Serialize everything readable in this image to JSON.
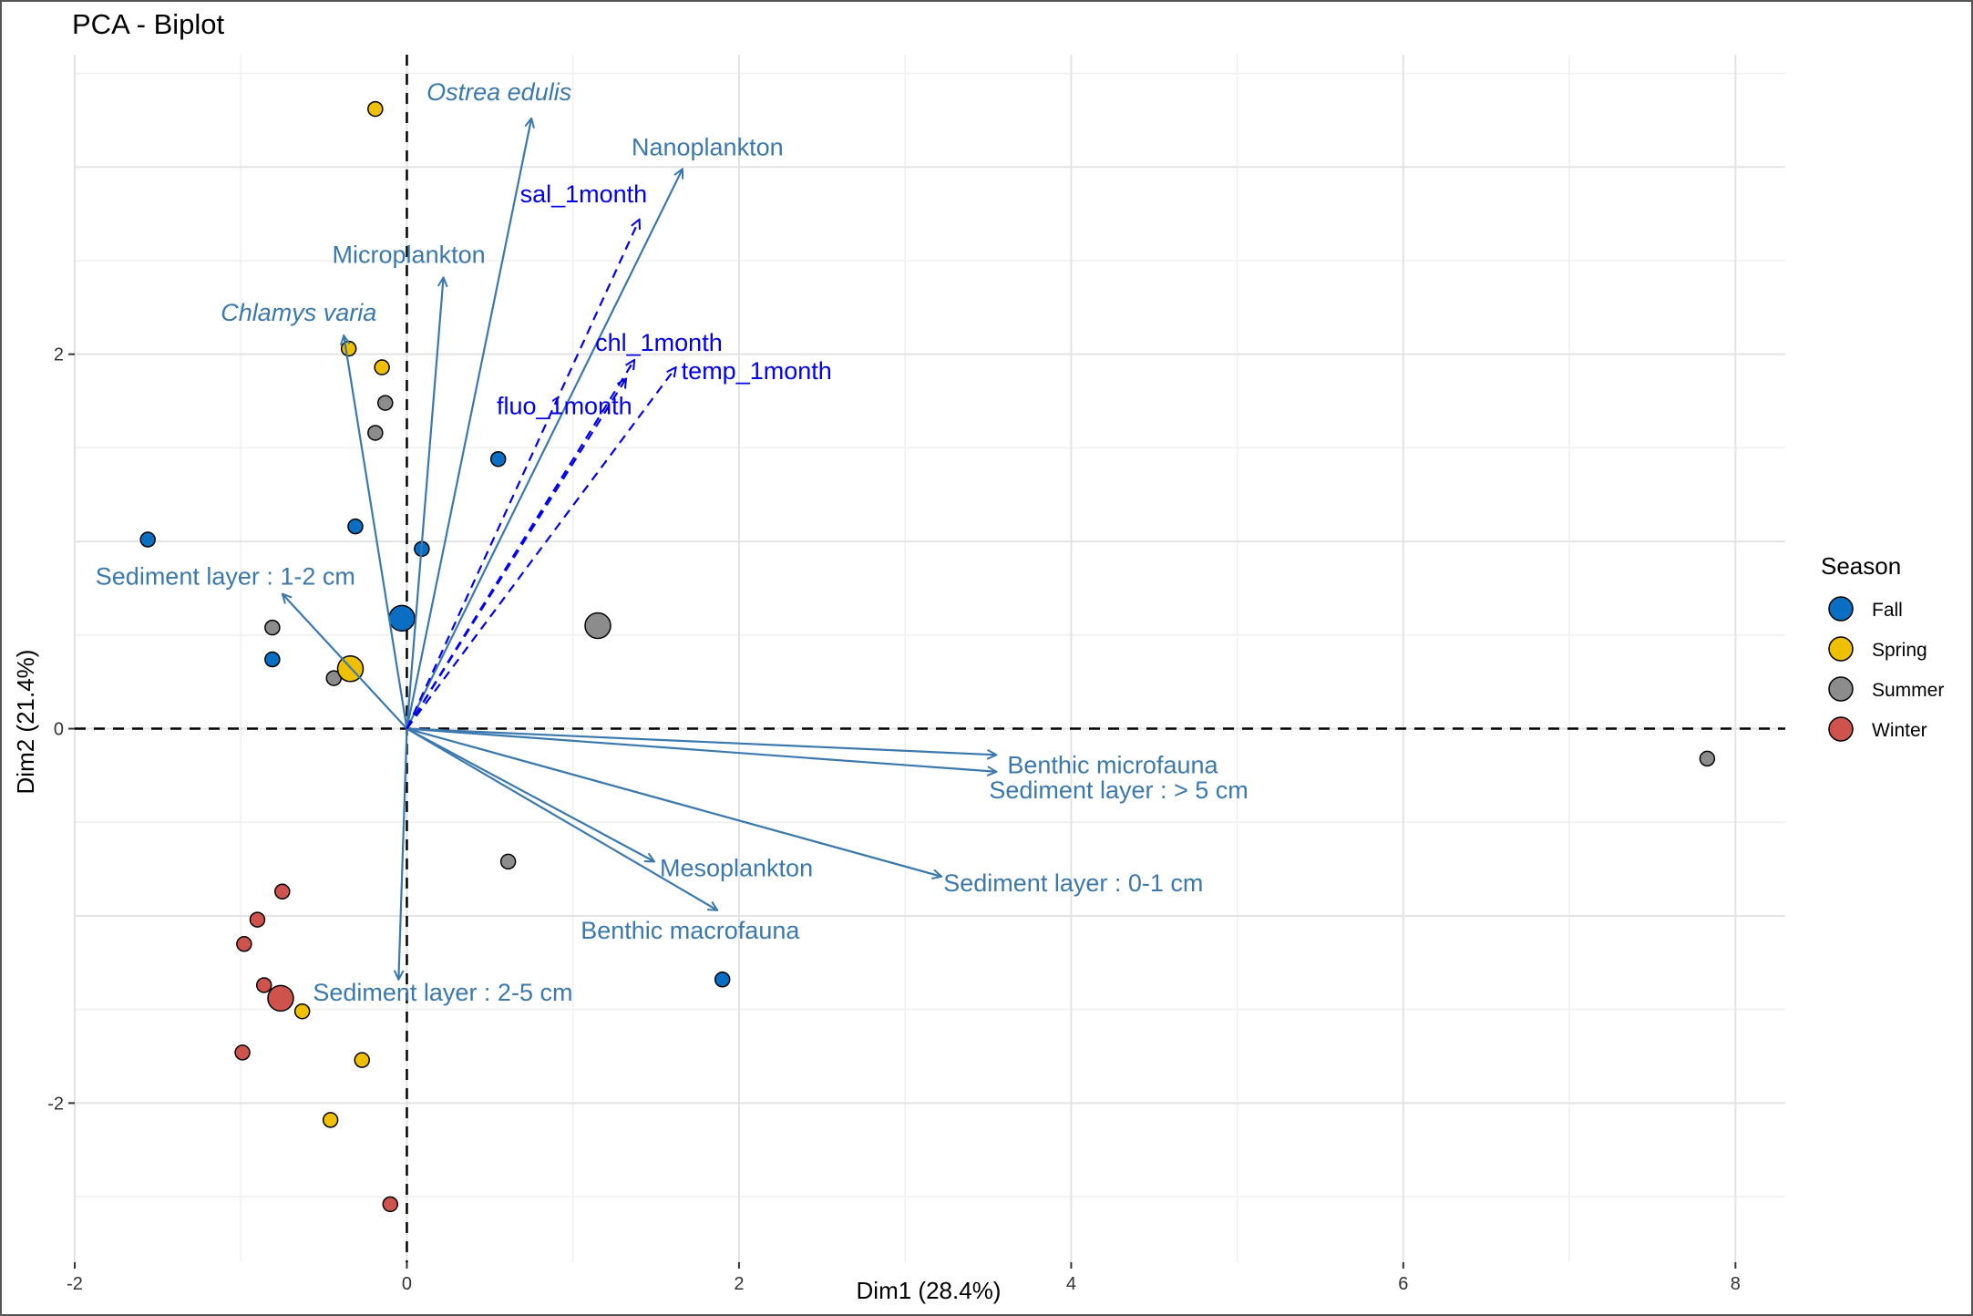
{
  "chart_data": {
    "type": "scatter",
    "title": "PCA - Biplot",
    "xlabel": "Dim1 (28.4%)",
    "ylabel": "Dim2 (21.4%)",
    "xlim": [
      -2.0,
      8.3
    ],
    "ylim": [
      -2.85,
      3.6
    ],
    "xticks": [
      -2,
      0,
      2,
      4,
      6,
      8
    ],
    "xtick_labels": [
      "-2",
      "0",
      "2",
      "4",
      "6",
      "8"
    ],
    "yticks": [
      -2,
      0,
      2
    ],
    "ytick_labels": [
      "-2",
      "0",
      "2"
    ],
    "grid": true,
    "legend": {
      "title": "Season",
      "position": "right",
      "entries": [
        {
          "name": "Fall",
          "color": "#0A6FC2"
        },
        {
          "name": "Spring",
          "color": "#EFC000"
        },
        {
          "name": "Summer",
          "color": "#8C8C8C"
        },
        {
          "name": "Winter",
          "color": "#CD534C"
        }
      ]
    },
    "points": [
      {
        "season": "Spring",
        "x": -0.19,
        "y": 3.31
      },
      {
        "season": "Spring",
        "x": -0.35,
        "y": 2.03
      },
      {
        "season": "Spring",
        "x": -0.15,
        "y": 1.93
      },
      {
        "season": "Summer",
        "x": -0.13,
        "y": 1.74
      },
      {
        "season": "Summer",
        "x": -0.19,
        "y": 1.58
      },
      {
        "season": "Fall",
        "x": 0.55,
        "y": 1.44
      },
      {
        "season": "Fall",
        "x": -1.56,
        "y": 1.01
      },
      {
        "season": "Fall",
        "x": -0.31,
        "y": 1.08
      },
      {
        "season": "Fall",
        "x": 0.09,
        "y": 0.96
      },
      {
        "season": "Summer",
        "x": -0.81,
        "y": 0.54
      },
      {
        "season": "Fall",
        "x": -0.81,
        "y": 0.37
      },
      {
        "season": "Summer",
        "x": -0.44,
        "y": 0.27
      },
      {
        "season": "Summer",
        "x": 0.61,
        "y": -0.71
      },
      {
        "season": "Summer",
        "x": 7.83,
        "y": -0.16
      },
      {
        "season": "Fall",
        "x": 1.9,
        "y": -1.34
      },
      {
        "season": "Winter",
        "x": -0.75,
        "y": -0.87
      },
      {
        "season": "Winter",
        "x": -0.9,
        "y": -1.02
      },
      {
        "season": "Winter",
        "x": -0.98,
        "y": -1.15
      },
      {
        "season": "Winter",
        "x": -0.86,
        "y": -1.37
      },
      {
        "season": "Spring",
        "x": -0.63,
        "y": -1.51
      },
      {
        "season": "Winter",
        "x": -0.99,
        "y": -1.73
      },
      {
        "season": "Spring",
        "x": -0.27,
        "y": -1.77
      },
      {
        "season": "Spring",
        "x": -0.46,
        "y": -2.09
      },
      {
        "season": "Winter",
        "x": -0.1,
        "y": -2.54
      }
    ],
    "centroids": [
      {
        "season": "Fall",
        "x": -0.03,
        "y": 0.59
      },
      {
        "season": "Spring",
        "x": -0.34,
        "y": 0.32
      },
      {
        "season": "Summer",
        "x": 1.15,
        "y": 0.55
      },
      {
        "season": "Winter",
        "x": -0.76,
        "y": -1.44
      }
    ],
    "variables": [
      {
        "name": "Ostrea edulis",
        "x": 0.75,
        "y": 3.26,
        "italic": true,
        "color": "#3A78AE"
      },
      {
        "name": "Nanoplankton",
        "x": 1.66,
        "y": 2.99,
        "italic": false,
        "color": "#3A78AE"
      },
      {
        "name": "Microplankton",
        "x": 0.22,
        "y": 2.41,
        "italic": false,
        "color": "#3A78AE"
      },
      {
        "name": "Chlamys varia",
        "x": -0.38,
        "y": 2.1,
        "italic": true,
        "color": "#3A78AE"
      },
      {
        "name": "Sediment layer : 1-2 cm",
        "x": -0.75,
        "y": 0.72,
        "italic": false,
        "color": "#3A78AE"
      },
      {
        "name": "Benthic microfauna",
        "x": 3.55,
        "y": -0.14,
        "italic": false,
        "color": "#3A78AE"
      },
      {
        "name": "Sediment layer : > 5 cm",
        "x": 3.55,
        "y": -0.23,
        "italic": false,
        "color": "#3A78AE"
      },
      {
        "name": "Mesoplankton",
        "x": 1.49,
        "y": -0.71,
        "italic": false,
        "color": "#3A78AE"
      },
      {
        "name": "Sediment layer : 0-1 cm",
        "x": 3.22,
        "y": -0.79,
        "italic": false,
        "color": "#3A78AE"
      },
      {
        "name": "Benthic macrofauna",
        "x": 1.87,
        "y": -0.97,
        "italic": false,
        "color": "#3A78AE"
      },
      {
        "name": "Sediment layer : 2-5 cm",
        "x": -0.05,
        "y": -1.34,
        "italic": false,
        "color": "#3A78AE"
      }
    ],
    "supplementary": [
      {
        "name": "sal_1month",
        "x": 1.4,
        "y": 2.72,
        "color": "#0000EE"
      },
      {
        "name": "chl_1month",
        "x": 1.37,
        "y": 1.97,
        "color": "#0000EE"
      },
      {
        "name": "fluo_1month",
        "x": 1.32,
        "y": 1.87,
        "color": "#0000EE"
      },
      {
        "name": "temp_1month",
        "x": 1.62,
        "y": 1.93,
        "color": "#0000EE"
      }
    ]
  }
}
